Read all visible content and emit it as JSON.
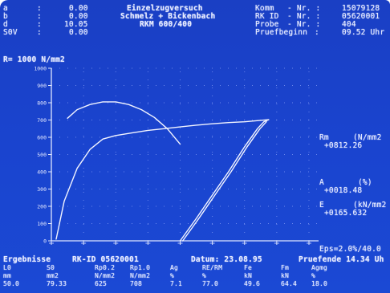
{
  "header": {
    "lines": [
      {
        "label": "a",
        "sep": ":",
        "value": "0.00"
      },
      {
        "label": "b",
        "sep": ":",
        "value": "0.00"
      },
      {
        "label": "d",
        "sep": ":",
        "value": "10.05"
      },
      {
        "label": "S0V",
        "sep": ":",
        "value": "0.00"
      }
    ],
    "title": [
      "Einzelzugversuch",
      "Schmelz + Bickenbach",
      "RKM 600/400"
    ],
    "meta": [
      {
        "label": "Komm",
        "sep": "- Nr. :",
        "value": "15079128"
      },
      {
        "label": "RK ID",
        "sep": "- Nr. :",
        "value": "05620001"
      },
      {
        "label": "Probe",
        "sep": "- Nr. :",
        "value": "404"
      },
      {
        "label": "Pruefbeginn",
        "sep": ":",
        "value": "09.52 Uhr"
      }
    ]
  },
  "chart_data": {
    "type": "line",
    "scale_label": "R= 1000 N/mm2",
    "y_ticks": [
      "1000",
      "900",
      "800",
      "700",
      "600",
      "500",
      "400",
      "300",
      "200",
      "100",
      "0"
    ],
    "x_tick_count": 8,
    "ylim": [
      0,
      1000
    ],
    "xlim": [
      0,
      8
    ],
    "series": [
      {
        "x": [
          0.15,
          0.4,
          0.8,
          1.2,
          1.6,
          2.0,
          2.5,
          3.0,
          3.5,
          4.0,
          4.5,
          5.0,
          5.5,
          6.0,
          6.5,
          6.75
        ],
        "values": [
          10,
          230,
          420,
          530,
          590,
          610,
          625,
          640,
          650,
          660,
          670,
          678,
          685,
          690,
          698,
          702
        ]
      },
      {
        "x": [
          4.0,
          4.5,
          5.0,
          5.5,
          6.0,
          6.4,
          6.6,
          6.75
        ],
        "values": [
          0,
          130,
          265,
          400,
          545,
          650,
          690,
          702
        ]
      },
      {
        "x": [
          4.08,
          4.58,
          5.08,
          5.58,
          6.08,
          6.48,
          6.68
        ],
        "values": [
          0,
          130,
          265,
          400,
          545,
          650,
          690
        ]
      },
      {
        "x": [
          0.5,
          0.8,
          1.2,
          1.6,
          2.0,
          2.4,
          2.8,
          3.2,
          3.6,
          4.0
        ],
        "values": [
          710,
          760,
          790,
          805,
          805,
          790,
          760,
          715,
          650,
          560
        ]
      }
    ],
    "grid": true
  },
  "right_panel": {
    "rm": {
      "label": "Rm",
      "unit": "(N/mm2",
      "value": "+0812.26"
    },
    "a": {
      "label": "A",
      "unit": "(%)",
      "value": "+0018.48"
    },
    "e": {
      "label": "E",
      "unit": "(kN/mm2",
      "value": "+0165.632"
    },
    "eps": "Eps=2.0%/40.0"
  },
  "footer": {
    "line1": {
      "left": "Ergebnisse",
      "mid": "RK-ID 05620001",
      "date": "Datum: 23.08.95",
      "right": "Pruefende 14.34 Uh"
    },
    "headers1": [
      "L0",
      "S0",
      "Rp0.2",
      "Rp1.0",
      "Ag",
      "RE/RM",
      "Fe",
      "Fm",
      "Agmg"
    ],
    "headers2": [
      "mm",
      "mm2",
      "N/mm2",
      "N/mm2",
      "%",
      "%",
      "kN",
      "kN",
      "%"
    ],
    "values": [
      "50.0",
      "79.33",
      "625",
      "708",
      "7.1",
      "77.0",
      "49.6",
      "64.4",
      "18.0"
    ]
  }
}
